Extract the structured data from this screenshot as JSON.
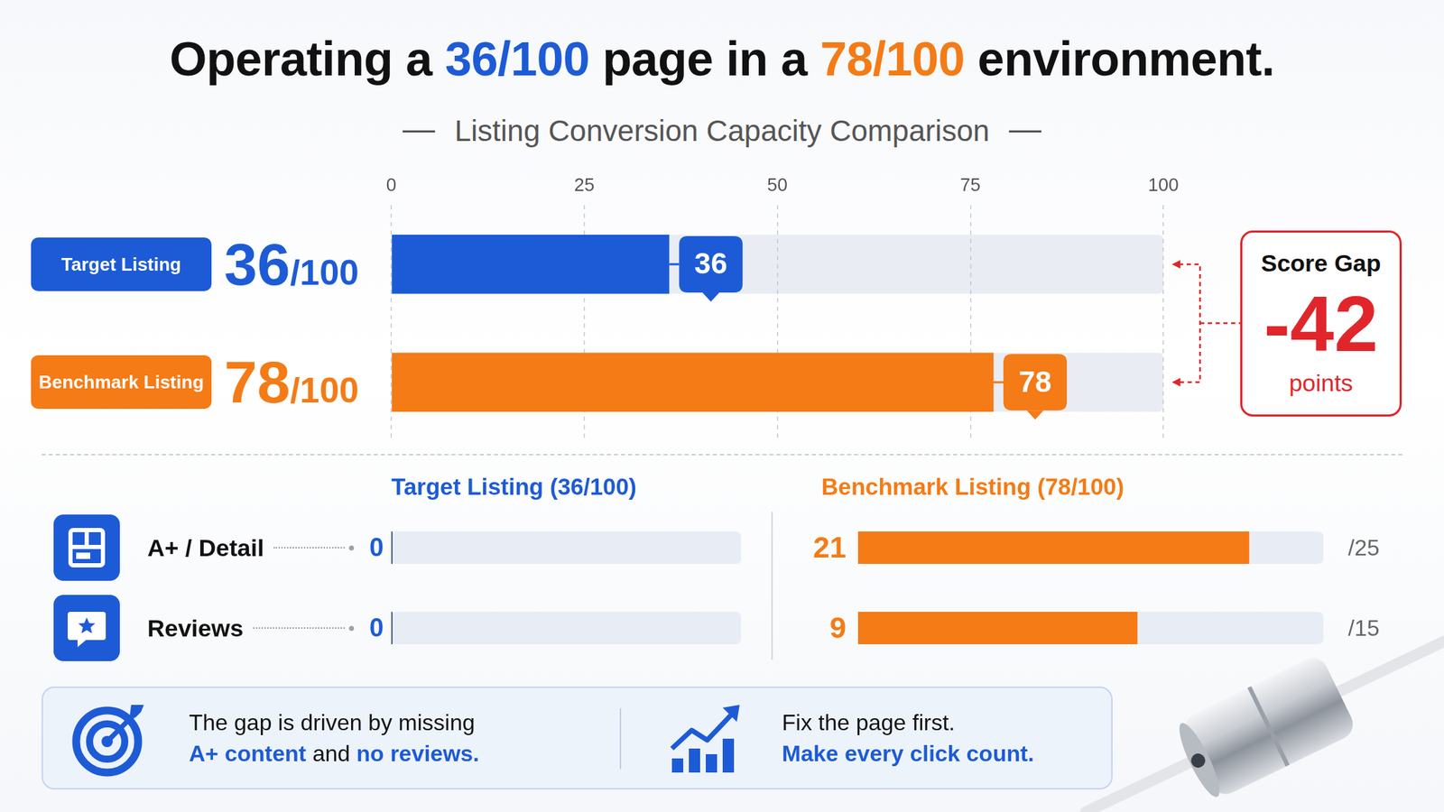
{
  "header": {
    "title": [
      {
        "text": "Operating a ",
        "color": "#111111"
      },
      {
        "text": "36/100",
        "color": "#1d5bd6"
      },
      {
        "text": " page in a ",
        "color": "#111111"
      },
      {
        "text": "78/100",
        "color": "#f47b16"
      },
      {
        "text": " environment.",
        "color": "#111111"
      }
    ]
  },
  "chart_data": [
    {
      "type": "bar",
      "orientation": "horizontal",
      "title": "Listing Conversion Capacity Comparison",
      "categories": [
        "Target Listing",
        "Benchmark Listing"
      ],
      "values": [
        36,
        78
      ],
      "colors": [
        "#1d5bd6",
        "#f47b16"
      ],
      "xlim": [
        0,
        100
      ],
      "xticks": [
        0,
        25,
        50,
        75,
        100
      ],
      "grid": true,
      "data_labels": true,
      "annotations": [
        "36/100",
        "78/100"
      ]
    },
    {
      "type": "bar",
      "orientation": "horizontal",
      "title": "Target Listing (36/100)",
      "values": [
        0,
        0
      ],
      "color": "#1d5bd6",
      "data_labels": true,
      "tick_labels": false
    },
    {
      "type": "bar",
      "orientation": "horizontal",
      "title": "Benchmark Listing (78/100)",
      "values": [
        21,
        9
      ],
      "color": "#f47b16",
      "data_labels": true,
      "tick_labels": false,
      "limit_labels": [
        "/25",
        "/15"
      ]
    }
  ],
  "breakdown": {
    "categories": [
      "A+ / Detail",
      "Reviews"
    ],
    "row_xlims": [
      [
        0,
        25
      ],
      [
        0,
        15
      ]
    ]
  },
  "score_gap": {
    "title": "Score Gap",
    "value": -42,
    "unit": "points",
    "color": "#e0262b"
  },
  "footer": {
    "left": [
      [
        {
          "text": "The gap is driven by missing"
        }
      ],
      [
        {
          "text": "A+ content",
          "color": "#1d5bd6"
        },
        {
          "text": " and "
        },
        {
          "text": "no reviews.",
          "color": "#1d5bd6"
        }
      ]
    ],
    "right": [
      [
        {
          "text": "Fix the page first."
        }
      ],
      [
        {
          "text": "Make every click count.",
          "color": "#1d5bd6"
        }
      ]
    ]
  }
}
